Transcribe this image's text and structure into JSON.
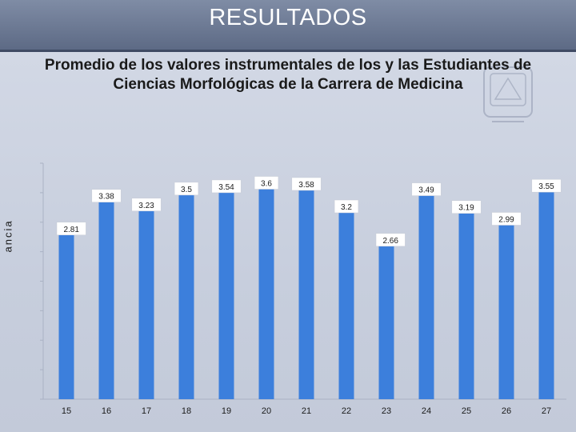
{
  "slide": {
    "heading": "RESULTADOS"
  },
  "chart_data": {
    "type": "bar",
    "title": "Promedio de los valores instrumentales de los y las Estudiantes de Ciencias Morfológicas de la Carrera de Medicina",
    "title_lines": [
      "Promedio de los valores instrumentales de los y las Estudiantes de",
      "Ciencias Morfológicas de la Carrera de Medicina"
    ],
    "ylabel": "ancia",
    "xlabel": "",
    "categories": [
      "15",
      "16",
      "17",
      "18",
      "19",
      "20",
      "21",
      "22",
      "23",
      "24",
      "25",
      "26",
      "27"
    ],
    "values": [
      2.81,
      3.38,
      3.23,
      3.5,
      3.54,
      3.6,
      3.58,
      3.2,
      2.66,
      3.49,
      3.19,
      2.99,
      3.55
    ],
    "data_labels": [
      "2.81",
      "3.38",
      "3.23",
      "3.5",
      "3.54",
      "3.6",
      "3.58",
      "3.2",
      "2.66",
      "3.49",
      "3.19",
      "2.99",
      "3.55"
    ],
    "ylim": [
      0,
      4
    ],
    "grid": false,
    "legend": "none",
    "bar_color": "#3c7fdc"
  }
}
